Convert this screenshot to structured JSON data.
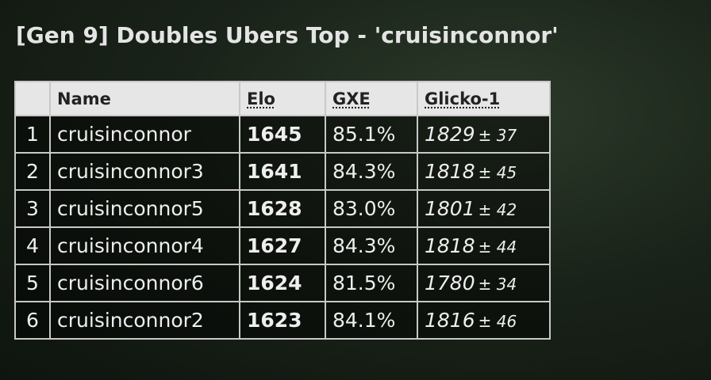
{
  "header": {
    "title": "[Gen 9] Doubles Ubers Top - 'cruisinconnor'"
  },
  "table": {
    "headers": [
      "Name",
      "Elo",
      "GXE",
      "Glicko-1"
    ],
    "rows": [
      {
        "rank": 1,
        "name": "cruisinconnor",
        "elo": 1645,
        "gxe": "85.1%",
        "glicko": 1829,
        "deviation": "± 37"
      },
      {
        "rank": 2,
        "name": "cruisinconnor3",
        "elo": 1641,
        "gxe": "84.3%",
        "glicko": 1818,
        "deviation": "± 45"
      },
      {
        "rank": 3,
        "name": "cruisinconnor5",
        "elo": 1628,
        "gxe": "83.0%",
        "glicko": 1801,
        "deviation": "± 42"
      },
      {
        "rank": 4,
        "name": "cruisinconnor4",
        "elo": 1627,
        "gxe": "84.3%",
        "glicko": 1818,
        "deviation": "± 44"
      },
      {
        "rank": 5,
        "name": "cruisinconnor6",
        "elo": 1624,
        "gxe": "81.5%",
        "glicko": 1780,
        "deviation": "± 34"
      },
      {
        "rank": 6,
        "name": "cruisinconnor2",
        "elo": 1623,
        "gxe": "84.1%",
        "glicko": 1816,
        "deviation": "± 46"
      }
    ]
  }
}
